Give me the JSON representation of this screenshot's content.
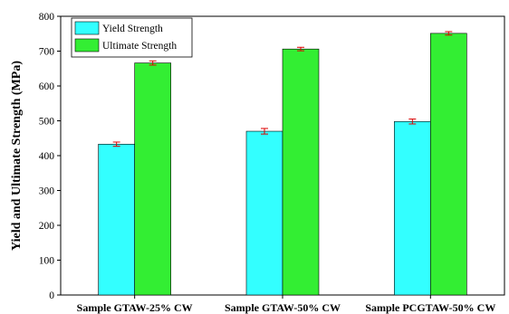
{
  "chart_data": {
    "type": "bar",
    "title": "",
    "xlabel": "",
    "ylabel": "Yield and Ultimate Strength (MPa)",
    "categories": [
      "Sample GTAW-25% CW",
      "Sample GTAW-50% CW",
      "Sample PCGTAW-50% CW"
    ],
    "series": [
      {
        "name": "Yield Strength",
        "color": "#33ffff",
        "values": [
          433,
          470,
          498
        ],
        "errors": [
          6,
          8,
          7
        ]
      },
      {
        "name": "Ultimate Strength",
        "color": "#33ee33",
        "values": [
          666,
          706,
          751
        ],
        "errors": [
          6,
          5,
          5
        ]
      }
    ],
    "ylim": [
      0,
      800
    ],
    "yticks": [
      0,
      100,
      200,
      300,
      400,
      500,
      600,
      700,
      800
    ],
    "error_bar_color": "#dd0000",
    "grid": false,
    "legend_position": "top-left"
  }
}
